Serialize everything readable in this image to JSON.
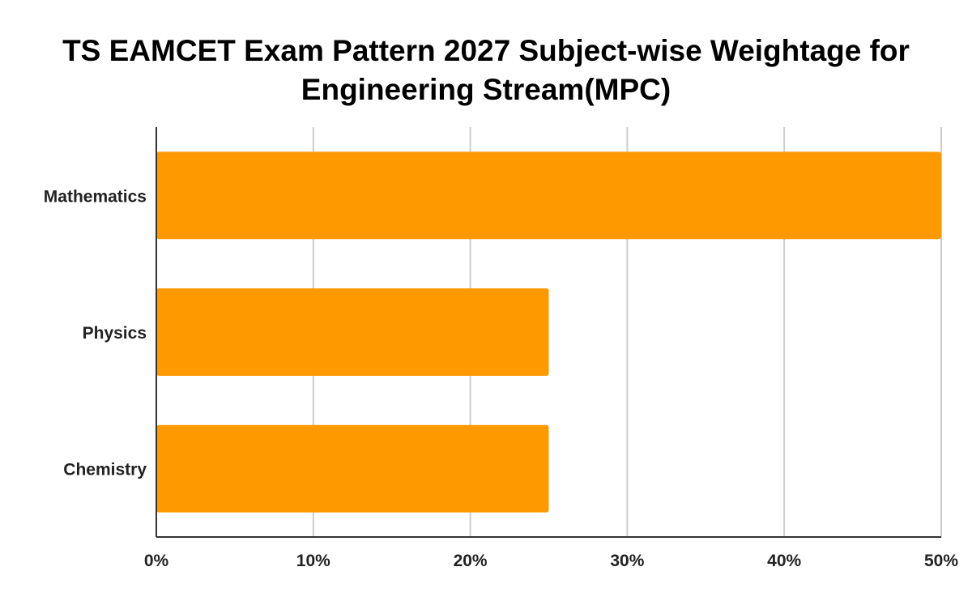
{
  "chart_data": {
    "type": "bar",
    "orientation": "horizontal",
    "title_lines": [
      "TS EAMCET Exam Pattern 2027 Subject-wise Weightage for",
      "Engineering Stream(MPC)"
    ],
    "categories": [
      "Mathematics",
      "Physics",
      "Chemistry"
    ],
    "values": [
      50,
      25,
      25
    ],
    "xlabel": "",
    "ylabel": "",
    "xlim": [
      0,
      50
    ],
    "x_ticks": [
      0,
      10,
      20,
      30,
      40,
      50
    ],
    "x_tick_labels": [
      "0%",
      "10%",
      "20%",
      "30%",
      "40%",
      "50%"
    ],
    "grid": true,
    "legend": "none",
    "bar_color": "#FF9900",
    "grid_color": "#CCCCCC",
    "axis_color": "#333333"
  }
}
